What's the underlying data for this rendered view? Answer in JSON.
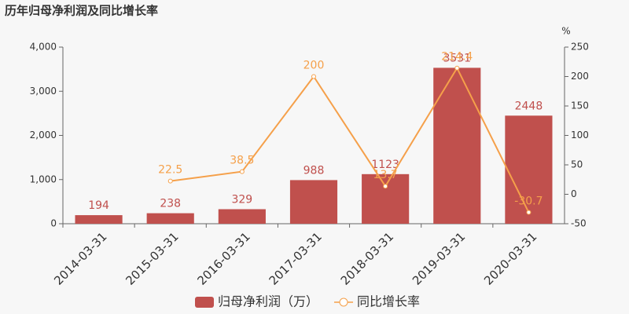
{
  "chart_data": {
    "type": "bar",
    "title": "历年归母净利润及同比增长率",
    "y2_label": "%",
    "categories": [
      "2014-03-31",
      "2015-03-31",
      "2016-03-31",
      "2017-03-31",
      "2018-03-31",
      "2019-03-31",
      "2020-03-31"
    ],
    "series": [
      {
        "name": "归母净利润（万）",
        "type": "bar",
        "color": "#c0504d",
        "values": [
          194,
          238,
          329,
          988,
          1123,
          3531,
          2448
        ]
      },
      {
        "name": "同比增长率",
        "type": "line",
        "axis": "y2",
        "color": "#f5a04a",
        "values": [
          null,
          22.5,
          38.5,
          200,
          13.7,
          214.4,
          -30.7
        ]
      }
    ],
    "ylim": [
      0,
      4000
    ],
    "yticks": [
      0,
      {
        "value": 1000,
        "label": "1,000"
      },
      {
        "value": 2000,
        "label": "2,000"
      },
      {
        "value": 3000,
        "label": "3,000"
      },
      {
        "value": 4000,
        "label": "4,000"
      }
    ],
    "y2lim": [
      -50,
      250
    ],
    "y2ticks": [
      -50,
      0,
      50,
      100,
      150,
      200,
      250
    ],
    "grid": false,
    "legend": "bottom"
  }
}
